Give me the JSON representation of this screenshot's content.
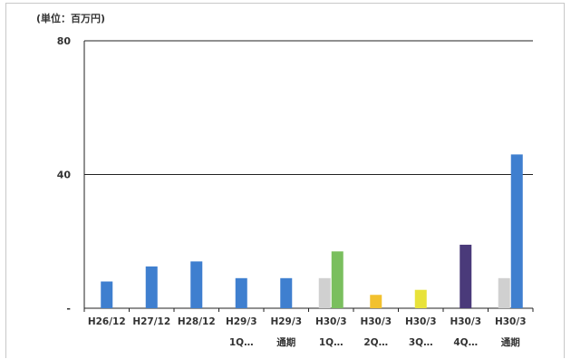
{
  "chart_data": {
    "type": "bar",
    "unit_label": "(単位：百万円)",
    "ylim": [
      0,
      80
    ],
    "yticks": [
      {
        "value": 80,
        "label": "80"
      },
      {
        "value": 40,
        "label": "40"
      },
      {
        "value": 0,
        "label": "-"
      }
    ],
    "grid": "horizontal at 40 and 80",
    "categories": [
      {
        "line1": "H26/12",
        "line2": ""
      },
      {
        "line1": "H27/12",
        "line2": ""
      },
      {
        "line1": "H28/12",
        "line2": ""
      },
      {
        "line1": "H29/3",
        "line2": "1Q…"
      },
      {
        "line1": "H29/3",
        "line2": "通期"
      },
      {
        "line1": "H30/3",
        "line2": "1Q…"
      },
      {
        "line1": "H30/3",
        "line2": "2Q…"
      },
      {
        "line1": "H30/3",
        "line2": "3Q…"
      },
      {
        "line1": "H30/3",
        "line2": "4Q…"
      },
      {
        "line1": "H30/3",
        "line2": "通期"
      }
    ],
    "bars": [
      {
        "category": 0,
        "slot": "center",
        "value": 8,
        "color": "#3f7fcf"
      },
      {
        "category": 1,
        "slot": "center",
        "value": 12.5,
        "color": "#3f7fcf"
      },
      {
        "category": 2,
        "slot": "center",
        "value": 14,
        "color": "#3f7fcf"
      },
      {
        "category": 3,
        "slot": "center",
        "value": 9,
        "color": "#3f7fcf"
      },
      {
        "category": 4,
        "slot": "center",
        "value": 9,
        "color": "#3f7fcf"
      },
      {
        "category": 5,
        "slot": "left",
        "value": 9,
        "color": "#d0d0d0"
      },
      {
        "category": 5,
        "slot": "right",
        "value": 17,
        "color": "#7abf5e"
      },
      {
        "category": 6,
        "slot": "center",
        "value": 4,
        "color": "#f2c12e"
      },
      {
        "category": 7,
        "slot": "center",
        "value": 5.5,
        "color": "#e8e23a"
      },
      {
        "category": 8,
        "slot": "center",
        "value": 19,
        "color": "#4a3a7a"
      },
      {
        "category": 9,
        "slot": "left",
        "value": 9,
        "color": "#d0d0d0"
      },
      {
        "category": 9,
        "slot": "right",
        "value": 46,
        "color": "#3f7fcf"
      }
    ]
  }
}
